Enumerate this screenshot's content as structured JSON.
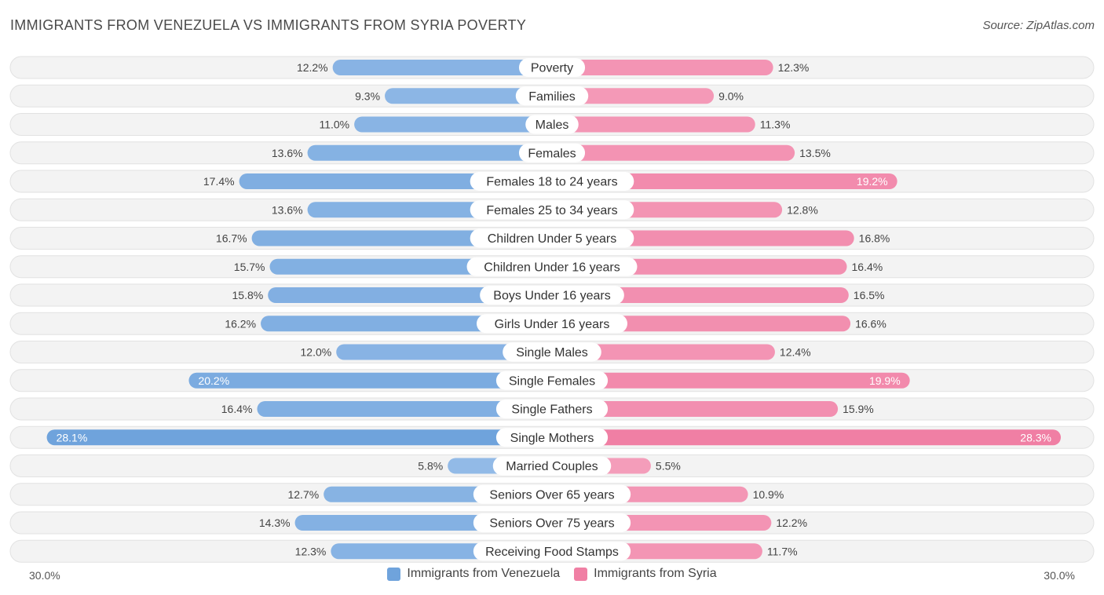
{
  "title": "IMMIGRANTS FROM VENEZUELA VS IMMIGRANTS FROM SYRIA POVERTY",
  "source": "Source: ZipAtlas.com",
  "colors": {
    "venezuela": "#6fa3dc",
    "venezuela_light": "#a9c9ee",
    "syria": "#f07fa4",
    "syria_light": "#f7b1c9",
    "row_bg": "#f1f1f1"
  },
  "chart_data": {
    "type": "bar",
    "orientation": "horizontal-diverging",
    "title": "IMMIGRANTS FROM VENEZUELA VS IMMIGRANTS FROM SYRIA POVERTY",
    "axis_min_label": "30.0%",
    "axis_max_label": "30.0%",
    "xlim": [
      0,
      30
    ],
    "categories": [
      "Poverty",
      "Families",
      "Males",
      "Females",
      "Females 18 to 24 years",
      "Females 25 to 34 years",
      "Children Under 5 years",
      "Children Under 16 years",
      "Boys Under 16 years",
      "Girls Under 16 years",
      "Single Males",
      "Single Females",
      "Single Fathers",
      "Single Mothers",
      "Married Couples",
      "Seniors Over 65 years",
      "Seniors Over 75 years",
      "Receiving Food Stamps"
    ],
    "series": [
      {
        "name": "Immigrants from Venezuela",
        "side": "left",
        "values": [
          12.2,
          9.3,
          11.0,
          13.6,
          17.4,
          13.6,
          16.7,
          15.7,
          15.8,
          16.2,
          12.0,
          20.2,
          16.4,
          28.1,
          5.8,
          12.7,
          14.3,
          12.3
        ],
        "labels": [
          "12.2%",
          "9.3%",
          "11.0%",
          "13.6%",
          "17.4%",
          "13.6%",
          "16.7%",
          "15.7%",
          "15.8%",
          "16.2%",
          "12.0%",
          "20.2%",
          "16.4%",
          "28.1%",
          "5.8%",
          "12.7%",
          "14.3%",
          "12.3%"
        ]
      },
      {
        "name": "Immigrants from Syria",
        "side": "right",
        "values": [
          12.3,
          9.0,
          11.3,
          13.5,
          19.2,
          12.8,
          16.8,
          16.4,
          16.5,
          16.6,
          12.4,
          19.9,
          15.9,
          28.3,
          5.5,
          10.9,
          12.2,
          11.7
        ],
        "labels": [
          "12.3%",
          "9.0%",
          "11.3%",
          "13.5%",
          "19.2%",
          "12.8%",
          "16.8%",
          "16.4%",
          "16.5%",
          "16.6%",
          "12.4%",
          "19.9%",
          "15.9%",
          "28.3%",
          "5.5%",
          "10.9%",
          "12.2%",
          "11.7%"
        ]
      }
    ],
    "legend": [
      "Immigrants from Venezuela",
      "Immigrants from Syria"
    ],
    "legend_position": "bottom-center"
  }
}
